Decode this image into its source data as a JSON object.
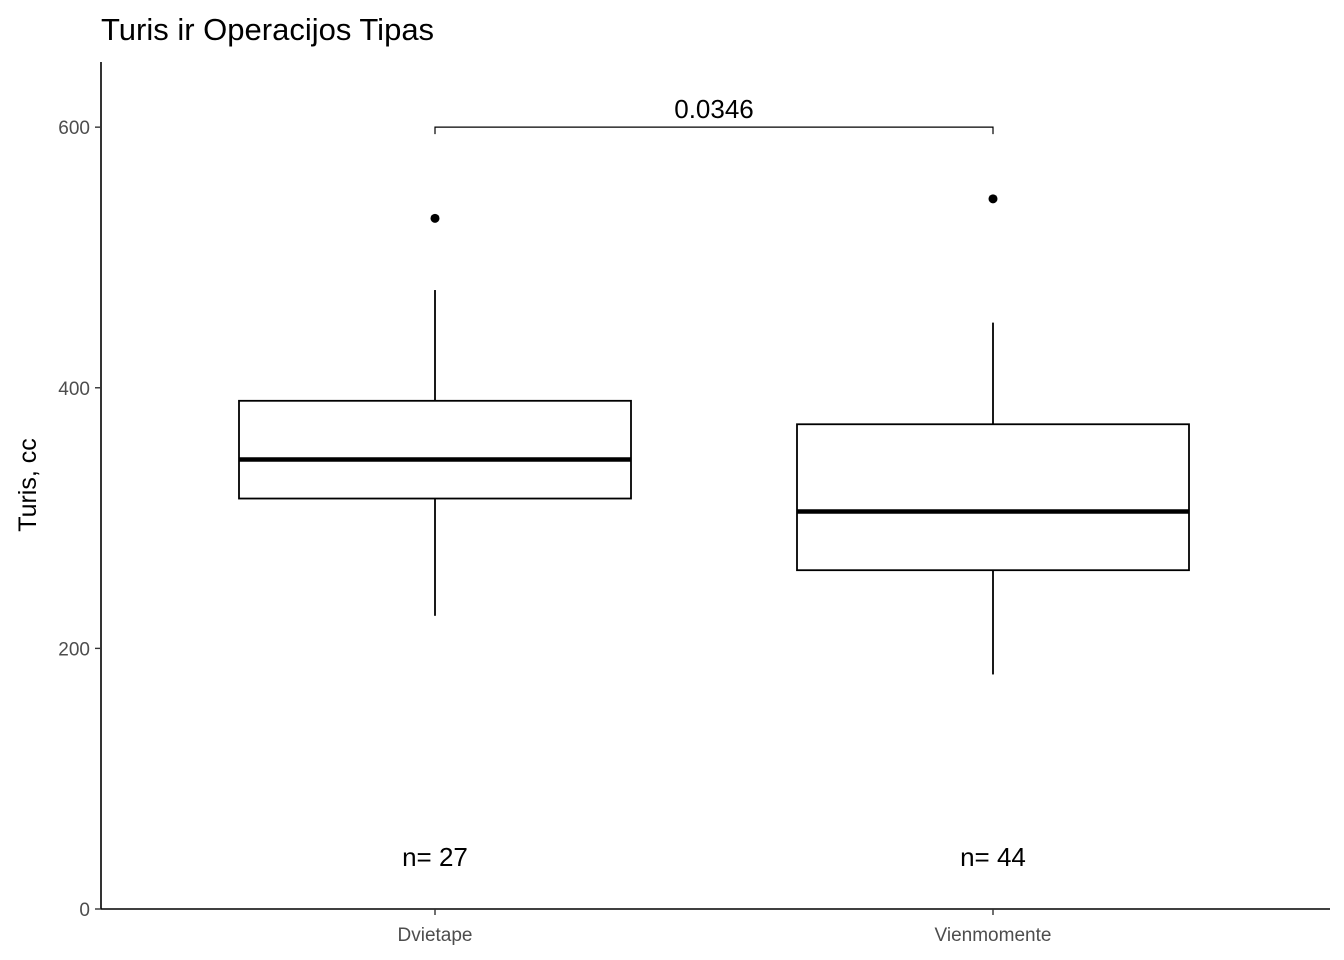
{
  "chart_data": {
    "type": "boxplot",
    "title": "Turis ir Operacijos Tipas",
    "xlabel": "",
    "ylabel": "Turis, cc",
    "ylim": [
      0,
      650
    ],
    "yticks": [
      0,
      200,
      400,
      600
    ],
    "categories": [
      "Dvietape",
      "Vienmomente"
    ],
    "boxes": [
      {
        "category": "Dvietape",
        "whisker_low": 225,
        "q1": 315,
        "median": 345,
        "q3": 390,
        "whisker_high": 475,
        "outliers": [
          530
        ],
        "n_label": "n= 27"
      },
      {
        "category": "Vienmomente",
        "whisker_low": 180,
        "q1": 260,
        "median": 305,
        "q3": 372,
        "whisker_high": 450,
        "outliers": [
          545
        ],
        "n_label": "n= 44"
      }
    ],
    "comparison": {
      "label": "0.0346",
      "y": 600
    },
    "grid": false,
    "legend": "none"
  }
}
